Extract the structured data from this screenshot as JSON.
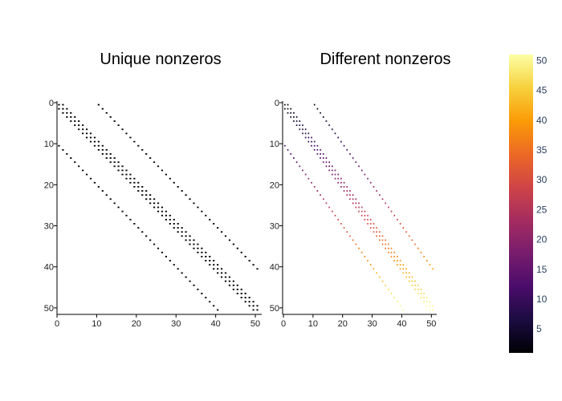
{
  "chart_data": [
    {
      "type": "scatter",
      "kind": "sparsity-pattern",
      "title": "Unique nonzeros",
      "matrix_size": 51,
      "xlim": [
        0,
        51
      ],
      "ylim": [
        0,
        51
      ],
      "y_inverted": true,
      "xticks": [
        "0",
        "10",
        "20",
        "30",
        "40",
        "50"
      ],
      "yticks": [
        "0",
        "10",
        "20",
        "30",
        "40",
        "50"
      ],
      "diagonal_offsets": [
        -10,
        -1,
        0,
        1,
        10
      ],
      "marker_color": "#000000",
      "grid": false
    },
    {
      "type": "scatter",
      "kind": "sparsity-pattern",
      "title": "Different nonzeros",
      "matrix_size": 51,
      "xlim": [
        0,
        51
      ],
      "ylim": [
        0,
        51
      ],
      "y_inverted": true,
      "xticks": [
        "0",
        "10",
        "20",
        "30",
        "40",
        "50"
      ],
      "yticks": [
        "0",
        "10",
        "20",
        "30",
        "40",
        "50"
      ],
      "diagonal_offsets": [
        -10,
        -1,
        0,
        1,
        10
      ],
      "color_by": "row index",
      "colorscale": "inferno",
      "grid": false
    }
  ],
  "colorbar": {
    "range": [
      1,
      51
    ],
    "ticks": [
      "5",
      "10",
      "15",
      "20",
      "25",
      "30",
      "35",
      "40",
      "45",
      "50"
    ],
    "stops": [
      "#000004",
      "#1b0c41",
      "#4a0c6b",
      "#781c6d",
      "#a52c60",
      "#cf4446",
      "#ed6925",
      "#fb9b06",
      "#f7d13d",
      "#fcffa4"
    ]
  }
}
